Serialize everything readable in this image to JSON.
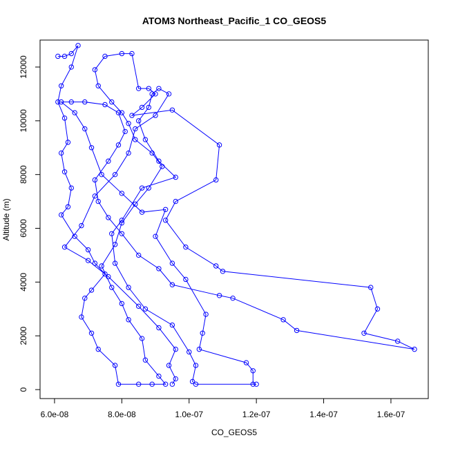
{
  "chart_data": {
    "type": "line",
    "title": "ATOM3 Northeast_Pacific_1 CO_GEOS5",
    "x_label": "CO_GEOS5",
    "y_label": "Altitude (m)",
    "color": "#0000ff",
    "grid": false,
    "xlim": [
      5.57e-08,
      1.711e-07
    ],
    "ylim": [
      -334,
      13003
    ],
    "xticks": [
      {
        "value": 6e-08,
        "label": "6.0e-08"
      },
      {
        "value": 8e-08,
        "label": "8.0e-08"
      },
      {
        "value": 1e-07,
        "label": "1.0e-07"
      },
      {
        "value": 1.2e-07,
        "label": "1.2e-07"
      },
      {
        "value": 1.4e-07,
        "label": "1.4e-07"
      },
      {
        "value": 1.6e-07,
        "label": "1.6e-07"
      }
    ],
    "yticks": [
      0,
      2000,
      4000,
      6000,
      8000,
      10000,
      12000
    ],
    "x": [
      6.1e-08,
      6.3e-08,
      6.5e-08,
      6.7e-08,
      6.5e-08,
      6.2e-08,
      6.1e-08,
      6.3e-08,
      6.4e-08,
      6.2e-08,
      6.3e-08,
      6.5e-08,
      6.4e-08,
      6.2e-08,
      6.6e-08,
      7e-08,
      7.2e-08,
      7.5e-08,
      7.1e-08,
      6.9e-08,
      6.8e-08,
      7.1e-08,
      7.3e-08,
      7.8e-08,
      7.9e-08,
      8.5e-08,
      8.9e-08,
      9.3e-08,
      9.1e-08,
      8.7e-08,
      8.6e-08,
      8.2e-08,
      8e-08,
      7.7e-08,
      7.4e-08,
      7.8e-08,
      8e-08,
      8.4e-08,
      8.8e-08,
      9.2e-08,
      8.9e-08,
      8.4e-08,
      8.2e-08,
      8e-08,
      7.7e-08,
      7.3e-08,
      7.2e-08,
      7.5e-08,
      8e-08,
      8.3e-08,
      8.5e-08,
      8.8e-08,
      9e-08,
      8.6e-08,
      8.3e-08,
      9.5e-08,
      1.09e-07,
      1.08e-07,
      9.6e-08,
      9.3e-08,
      9.9e-08,
      1.08e-07,
      1.1e-07,
      1.54e-07,
      1.56e-07,
      1.52e-07,
      1.62e-07,
      1.67e-07,
      1.32e-07,
      1.28e-07,
      1.13e-07,
      1.09e-07,
      9.5e-08,
      9.1e-08,
      8.5e-08,
      8e-08,
      7.6e-08,
      7.3e-08,
      7.2e-08,
      7.6e-08,
      7.9e-08,
      8.1e-08,
      7.9e-08,
      7.5e-08,
      6.9e-08,
      6.5e-08,
      6.2e-08,
      6.6e-08,
      6.9e-08,
      7.1e-08,
      7.4e-08,
      8e-08,
      8.6e-08,
      9.3e-08,
      9e-08,
      9.5e-08,
      9.9e-08,
      1.05e-07,
      1.04e-07,
      1.03e-07,
      1.17e-07,
      1.19e-07,
      1.19e-07,
      1.2e-07,
      1.02e-07,
      1.01e-07,
      1.02e-07,
      1e-07,
      9.5e-08,
      8.7e-08,
      8.2e-08,
      7.8e-08,
      7.7e-08,
      8e-08,
      8.6e-08,
      9.6e-08,
      9.1e-08,
      8.7e-08,
      8.5e-08,
      8.8e-08,
      8.9e-08,
      9.1e-08,
      9.4e-08,
      9e-08,
      8.4e-08,
      8.2e-08,
      7.8e-08,
      7.2e-08,
      6.8e-08,
      6.3e-08,
      7e-08,
      7.6e-08,
      8.5e-08,
      9.1e-08,
      9.6e-08,
      9.4e-08,
      9.6e-08,
      9.5e-08
    ],
    "values": [
      12400,
      12400,
      12500,
      12800,
      12000,
      11300,
      10700,
      10100,
      9200,
      8800,
      8100,
      7500,
      6800,
      6500,
      5700,
      5200,
      4700,
      4300,
      3700,
      3400,
      2700,
      2100,
      1500,
      900,
      200,
      200,
      200,
      200,
      500,
      1100,
      1900,
      2600,
      3200,
      3800,
      4600,
      5400,
      6200,
      6900,
      7500,
      8300,
      8800,
      9300,
      9900,
      10300,
      10700,
      11300,
      11900,
      12400,
      12500,
      12500,
      11200,
      11200,
      11000,
      10500,
      10200,
      10400,
      9100,
      7800,
      7000,
      6300,
      5300,
      4600,
      4400,
      3800,
      3000,
      2100,
      1800,
      1500,
      2200,
      2600,
      3400,
      3500,
      3900,
      4500,
      5000,
      5800,
      6400,
      7000,
      7800,
      8500,
      9100,
      9600,
      10300,
      10600,
      10700,
      10700,
      10700,
      10300,
      9700,
      9000,
      8000,
      7300,
      6600,
      6700,
      5700,
      4700,
      4100,
      2800,
      2100,
      1500,
      1000,
      700,
      200,
      200,
      200,
      300,
      900,
      1400,
      2400,
      3000,
      3800,
      4700,
      5800,
      6300,
      7500,
      7900,
      8500,
      9300,
      10000,
      10500,
      11000,
      11200,
      11000,
      10200,
      9700,
      8800,
      8000,
      7200,
      6100,
      5300,
      4800,
      4200,
      3100,
      2300,
      1500,
      900,
      400,
      200
    ]
  }
}
